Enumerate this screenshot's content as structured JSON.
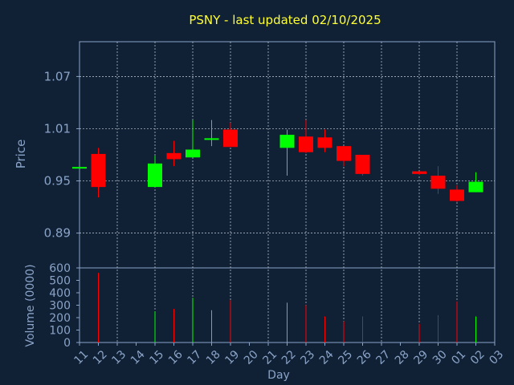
{
  "chart_data": {
    "type": "candlestick",
    "title": "PSNY - last updated 02/10/2025",
    "xlabel": "Day",
    "ylabel": "Price",
    "volume_label": "Volume (0000)",
    "x_ticks": [
      "11",
      "12",
      "13",
      "14",
      "15",
      "16",
      "17",
      "18",
      "19",
      "20",
      "21",
      "22",
      "23",
      "24",
      "25",
      "26",
      "27",
      "28",
      "29",
      "30",
      "01",
      "02",
      "03"
    ],
    "price_ticks": [
      "0.89",
      "0.95",
      "1.01",
      "1.07"
    ],
    "volume_ticks": [
      "0",
      "100",
      "200",
      "300",
      "400",
      "500",
      "600"
    ],
    "ylim": [
      0.85,
      1.11
    ],
    "volume_ylim": [
      0,
      600
    ],
    "grid": true,
    "colors": {
      "up": "#00ff00",
      "down": "#ff0000",
      "background": "#102035",
      "title": "#ffff33",
      "axis": "#8aa4c8"
    },
    "candles": [
      {
        "x": "11",
        "open": 0.966,
        "high": 0.966,
        "low": 0.966,
        "close": 0.966,
        "volume": 0
      },
      {
        "x": "12",
        "open": 0.981,
        "high": 0.988,
        "low": 0.931,
        "close": 0.943,
        "volume": 560
      },
      {
        "x": "15",
        "open": 0.943,
        "high": 0.979,
        "low": 0.943,
        "close": 0.97,
        "volume": 250
      },
      {
        "x": "16",
        "open": 0.982,
        "high": 0.996,
        "low": 0.967,
        "close": 0.975,
        "volume": 270
      },
      {
        "x": "17",
        "open": 0.977,
        "high": 1.02,
        "low": 0.977,
        "close": 0.986,
        "volume": 360
      },
      {
        "x": "18",
        "open": 0.998,
        "high": 1.02,
        "low": 0.99,
        "close": 0.999,
        "volume": 260
      },
      {
        "x": "19",
        "open": 1.009,
        "high": 1.017,
        "low": 0.99,
        "close": 0.989,
        "volume": 340
      },
      {
        "x": "22",
        "open": 0.988,
        "high": 1.009,
        "low": 0.956,
        "close": 1.003,
        "volume": 320
      },
      {
        "x": "23",
        "open": 1.001,
        "high": 1.02,
        "low": 0.982,
        "close": 0.983,
        "volume": 300
      },
      {
        "x": "24",
        "open": 1.0,
        "high": 1.009,
        "low": 0.983,
        "close": 0.988,
        "volume": 210
      },
      {
        "x": "25",
        "open": 0.99,
        "high": 0.99,
        "low": 0.967,
        "close": 0.973,
        "volume": 170
      },
      {
        "x": "26",
        "open": 0.98,
        "high": 0.98,
        "low": 0.956,
        "close": 0.958,
        "volume": 210
      },
      {
        "x": "29",
        "open": 0.961,
        "high": 0.961,
        "low": 0.957,
        "close": 0.958,
        "volume": 150
      },
      {
        "x": "30",
        "open": 0.956,
        "high": 0.967,
        "low": 0.935,
        "close": 0.941,
        "volume": 220
      },
      {
        "x": "01",
        "open": 0.94,
        "high": 0.945,
        "low": 0.926,
        "close": 0.927,
        "volume": 330
      },
      {
        "x": "02",
        "open": 0.937,
        "high": 0.96,
        "low": 0.937,
        "close": 0.949,
        "volume": 210
      }
    ]
  }
}
